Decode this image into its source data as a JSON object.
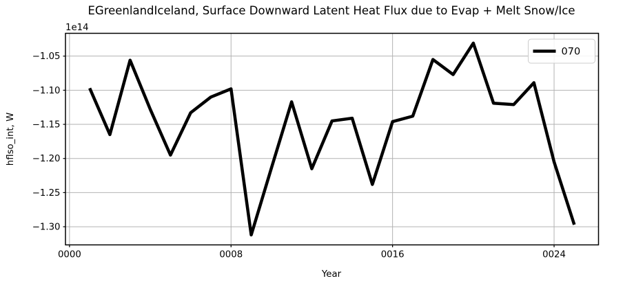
{
  "figure": {
    "title": "EGreenlandIceland, Surface Downward Latent Heat Flux due to Evap + Melt Snow/Ice",
    "y_offset_label": "1e14",
    "xlabel": "Year",
    "ylabel": "hflso_int, W",
    "legend_label": "070",
    "colors": {
      "line": "#000000",
      "grid": "#b2b2b2",
      "spine": "#000000",
      "legend_border": "#cccccc",
      "background": "#ffffff"
    }
  },
  "chart_data": {
    "type": "line",
    "title": "EGreenlandIceland, Surface Downward Latent Heat Flux due to Evap + Melt Snow/Ice",
    "xlabel": "Year",
    "ylabel": "hflso_int, W",
    "y_offset_multiplier": "1e14",
    "units": "W",
    "grid": true,
    "legend_position": "upper right",
    "x": [
      1,
      2,
      3,
      4,
      5,
      6,
      7,
      8,
      9,
      10,
      11,
      12,
      13,
      14,
      15,
      16,
      17,
      18,
      19,
      20,
      21,
      22,
      23,
      24,
      25
    ],
    "series": [
      {
        "name": "070",
        "values_times_1e14": [
          -1.097,
          -1.165,
          -1.056,
          -1.128,
          -1.195,
          -1.133,
          -1.11,
          -1.098,
          -1.312,
          -1.214,
          -1.117,
          -1.215,
          -1.145,
          -1.141,
          -1.238,
          -1.146,
          -1.138,
          -1.055,
          -1.077,
          -1.031,
          -1.119,
          -1.121,
          -1.089,
          -1.205,
          -1.297
        ]
      }
    ],
    "xlim": [
      -0.2,
      26.2
    ],
    "ylim": [
      -1.3266,
      -1.0166
    ],
    "xticks": [
      0,
      8,
      16,
      24
    ],
    "xtick_labels": [
      "0000",
      "0008",
      "0016",
      "0024"
    ],
    "yticks": [
      -1.05,
      -1.1,
      -1.15,
      -1.2,
      -1.25,
      -1.3
    ],
    "ytick_labels": [
      "−1.05",
      "−1.10",
      "−1.15",
      "−1.20",
      "−1.25",
      "−1.30"
    ]
  }
}
